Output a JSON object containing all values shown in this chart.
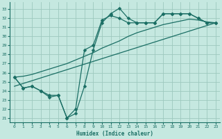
{
  "xlabel": "Humidex (Indice chaleur)",
  "bg_color": "#c5e8e0",
  "grid_color": "#9dc8be",
  "line_color": "#1a6e64",
  "xlim": [
    -0.5,
    23.5
  ],
  "ylim": [
    20.5,
    33.8
  ],
  "yticks": [
    21,
    22,
    23,
    24,
    25,
    26,
    27,
    28,
    29,
    30,
    31,
    32,
    33
  ],
  "xticks": [
    0,
    1,
    2,
    3,
    4,
    5,
    6,
    7,
    8,
    9,
    10,
    11,
    12,
    13,
    14,
    15,
    16,
    17,
    18,
    19,
    20,
    21,
    22,
    23
  ],
  "line1_x": [
    0,
    1,
    2,
    3,
    4,
    5,
    6,
    7,
    8,
    9,
    10,
    11,
    12,
    13,
    14,
    15,
    16,
    17,
    18,
    19,
    20,
    21,
    22,
    23
  ],
  "line1_y": [
    25.5,
    24.3,
    24.5,
    24.0,
    23.5,
    23.5,
    21.0,
    21.5,
    24.5,
    28.5,
    31.5,
    32.5,
    33.1,
    32.0,
    31.5,
    31.5,
    31.5,
    32.5,
    32.5,
    32.5,
    32.5,
    32.0,
    31.5,
    31.5
  ],
  "line2_x": [
    0,
    1,
    2,
    3,
    4,
    5,
    6,
    7,
    8,
    9,
    10,
    11,
    12,
    13,
    14,
    15,
    16,
    17,
    18,
    19,
    20,
    21,
    22,
    23
  ],
  "line2_y": [
    25.5,
    24.3,
    24.5,
    24.0,
    23.3,
    23.5,
    21.0,
    22.0,
    28.5,
    29.0,
    31.8,
    32.3,
    32.0,
    31.5,
    31.5,
    31.5,
    31.5,
    32.5,
    32.5,
    32.5,
    32.5,
    32.0,
    31.5,
    31.5
  ],
  "line3_x": [
    0,
    1,
    2,
    3,
    4,
    5,
    6,
    7,
    8,
    9,
    10,
    11,
    12,
    13,
    14,
    15,
    16,
    17,
    18,
    19,
    20,
    21,
    22,
    23
  ],
  "line3_y": [
    25.5,
    25.6,
    25.8,
    26.1,
    26.4,
    26.7,
    27.0,
    27.4,
    27.8,
    28.2,
    28.7,
    29.1,
    29.5,
    30.0,
    30.4,
    30.7,
    31.0,
    31.3,
    31.5,
    31.7,
    31.9,
    31.8,
    31.6,
    31.5
  ],
  "line4_x": [
    0,
    23
  ],
  "line4_y": [
    24.5,
    31.5
  ]
}
